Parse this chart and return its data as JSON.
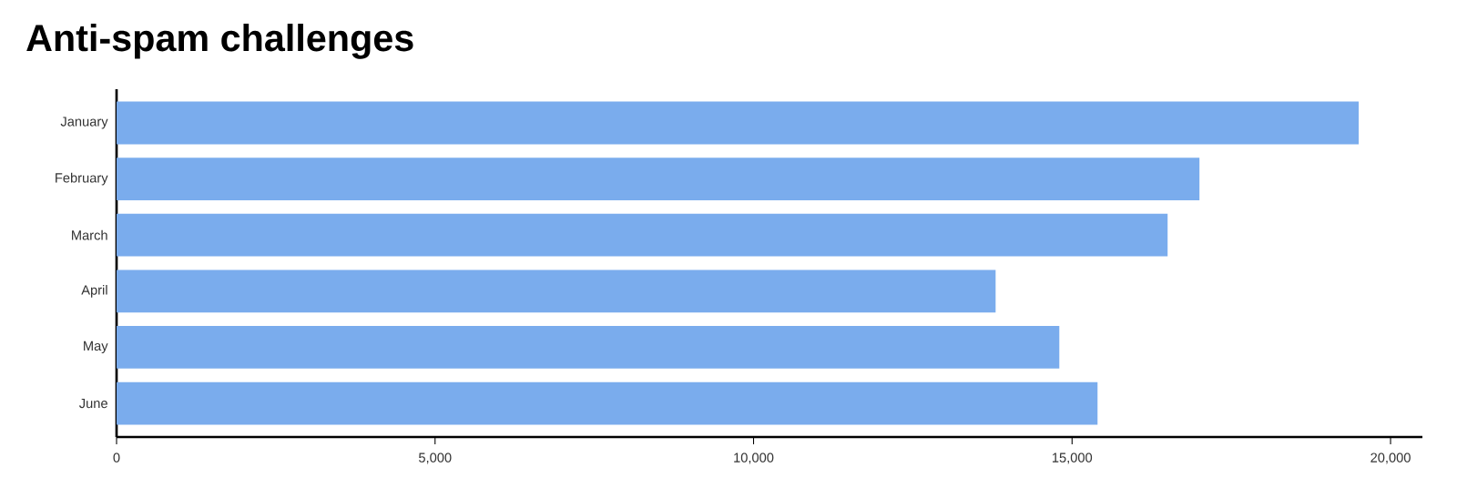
{
  "chart_data": {
    "type": "bar",
    "orientation": "horizontal",
    "title": "Anti-spam challenges",
    "categories": [
      "January",
      "February",
      "March",
      "April",
      "May",
      "June"
    ],
    "values": [
      19500,
      17000,
      16500,
      13800,
      14800,
      15400
    ],
    "color": "#7aaced",
    "xlim": [
      0,
      20500
    ],
    "xticks": [
      0,
      {
        "value": 5000,
        "label": "5,000"
      },
      {
        "value": 10000,
        "label": "10,000"
      },
      {
        "value": 15000,
        "label": "15,000"
      },
      {
        "value": 20000,
        "label": "20,000"
      }
    ]
  }
}
